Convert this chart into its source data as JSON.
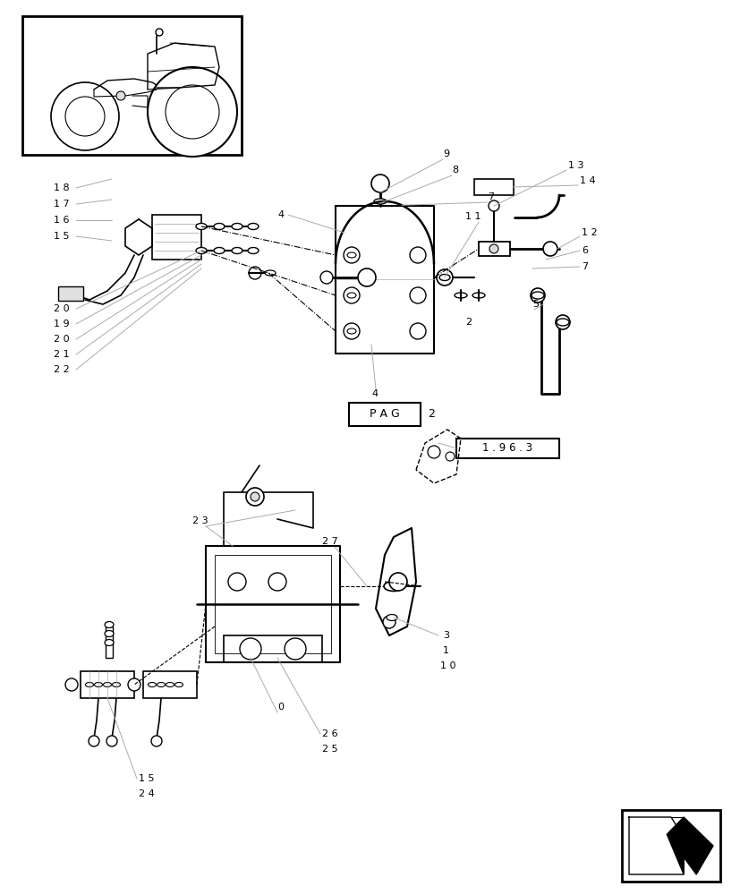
{
  "bg_color": "#ffffff",
  "line_color": "#000000",
  "fig_width": 8.28,
  "fig_height": 10.0,
  "dpi": 100
}
